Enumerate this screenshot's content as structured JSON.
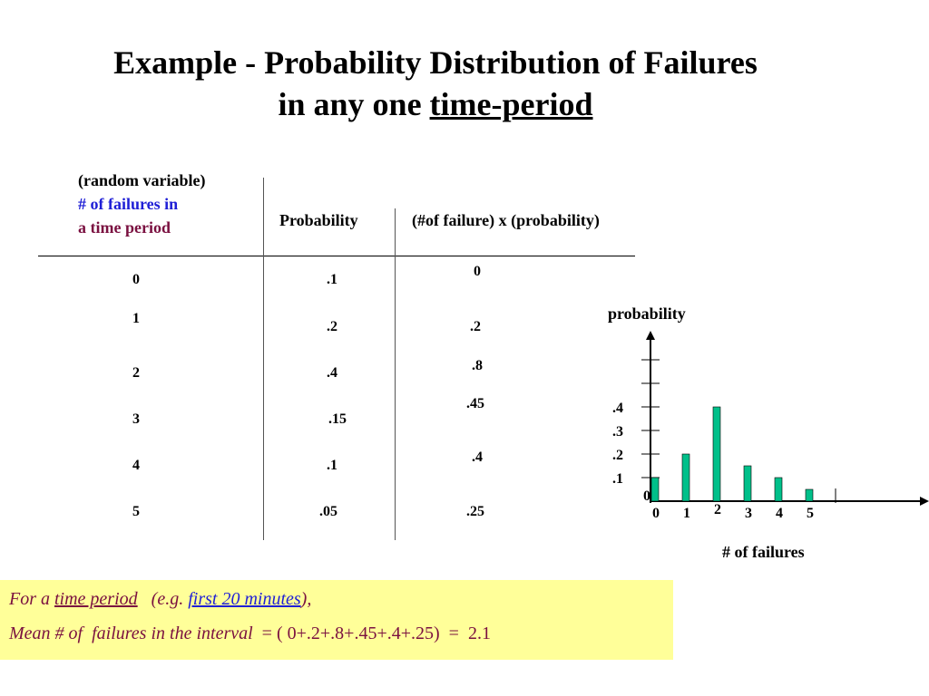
{
  "title": {
    "line1": "Example - Probability Distribution of Failures",
    "line2_prefix": "in any one ",
    "line2_underlined": "time-period"
  },
  "table": {
    "header_col1": [
      "(random variable)",
      "# of failures in",
      "a time period"
    ],
    "header_col2": "Probability",
    "header_col3": "(#of failure) x (probability)",
    "col1": [
      "0",
      "1",
      "2",
      "3",
      "4",
      "5"
    ],
    "col2": [
      ".1",
      ".2",
      ".4",
      ".15",
      ".1",
      ".05"
    ],
    "col3": [
      "0",
      ".2",
      ".8",
      ".45",
      ".4",
      ".25"
    ]
  },
  "chart_data": {
    "type": "bar",
    "ylabel": "probability",
    "xlabel": "# of failures",
    "categories": [
      "0",
      "1",
      "2",
      "3",
      "4",
      "5"
    ],
    "values": [
      0.1,
      0.2,
      0.4,
      0.15,
      0.1,
      0.05
    ],
    "ytick_labels": [
      ".1",
      ".2",
      ".3",
      ".4"
    ],
    "y_origin_label": "0",
    "ylim": [
      0,
      0.6
    ],
    "bar_color": "#00c08a"
  },
  "note": {
    "line1_prefix": "For a ",
    "line1_underlined": "time period",
    "line1_mid": "   (e.g. ",
    "line1_link": "first 20 minutes",
    "line1_suffix": "),",
    "line2_italic": "Mean # of  failures in the interval  ",
    "line2_plain": "= ( 0+.2+.8+.45+.4+.25)  =  2.1"
  }
}
